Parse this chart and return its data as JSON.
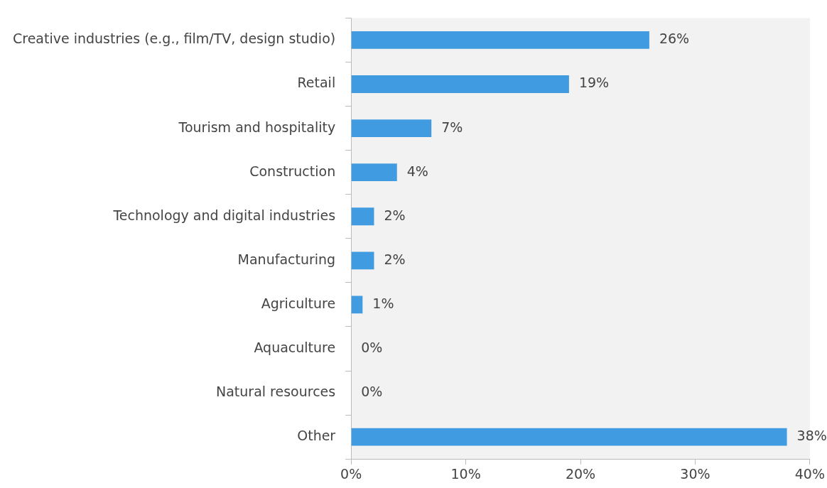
{
  "chart_data": {
    "type": "bar",
    "orientation": "horizontal",
    "categories": [
      "Creative industries (e.g., film/TV, design studio)",
      "Retail",
      "Tourism and hospitality",
      "Construction",
      "Technology and digital industries",
      "Manufacturing",
      "Agriculture",
      "Aquaculture",
      "Natural resources",
      "Other"
    ],
    "values": [
      26,
      19,
      7,
      4,
      2,
      2,
      1,
      0,
      0,
      38
    ],
    "value_labels": [
      "26%",
      "19%",
      "7%",
      "4%",
      "2%",
      "2%",
      "1%",
      "0%",
      "0%",
      "38%"
    ],
    "color": "#419be1",
    "xlim": [
      0,
      40
    ],
    "xticks": [
      {
        "value": 0,
        "label": "0%"
      },
      {
        "value": 10,
        "label": "10%"
      },
      {
        "value": 20,
        "label": "20%"
      },
      {
        "value": 30,
        "label": "30%"
      },
      {
        "value": 40,
        "label": "40%"
      }
    ],
    "grid": false,
    "legend": false
  }
}
